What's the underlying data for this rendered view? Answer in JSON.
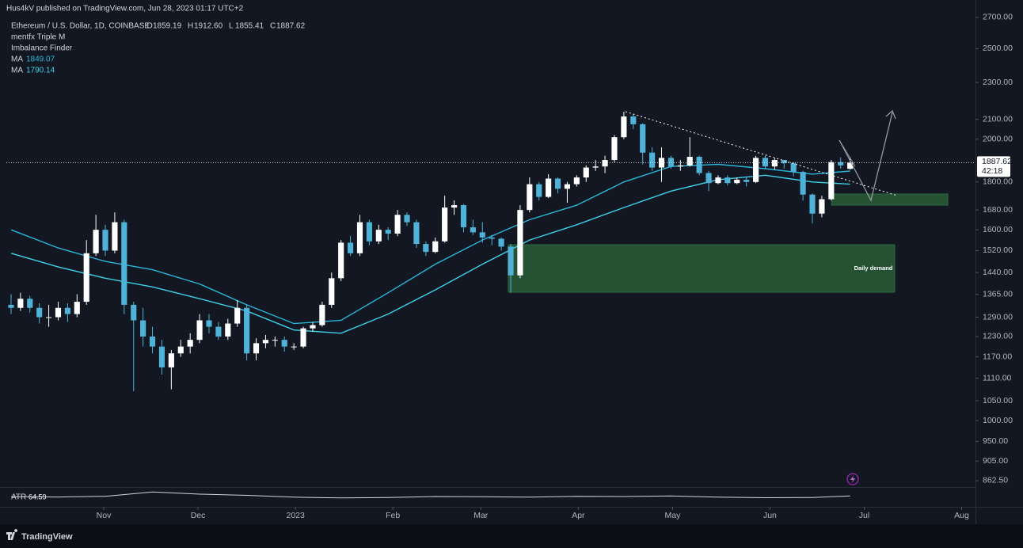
{
  "header": {
    "published": "Hus4kV published on TradingView.com, Jun 28, 2023 01:17 UTC+2",
    "symbol": "Ethereum / U.S. Dollar, 1D, COINBASE",
    "ohlc": {
      "labels": [
        "O",
        "H",
        "L",
        "C"
      ],
      "values": [
        1859.19,
        1912.6,
        1855.41,
        1887.62
      ],
      "value_labels": [
        "1859.19",
        "1912.60",
        "1855.41",
        "1887.62"
      ]
    },
    "indicators": [
      "mentfx Triple M",
      "Imbalance Finder"
    ]
  },
  "chart_data": {
    "type": "candlestick",
    "log_scale": true,
    "up_color": "#ffffff",
    "down_color": "#4fb3d9",
    "open": [
      1330,
      1320,
      1350,
      1320,
      1290,
      1290,
      1320,
      1300,
      1340,
      1510,
      1600,
      1520,
      1630,
      1330,
      1280,
      1230,
      1200,
      1140,
      1180,
      1200,
      1220,
      1280,
      1260,
      1230,
      1270,
      1320,
      1180,
      1210,
      1220,
      1220,
      1200,
      1200,
      1255,
      1265,
      1330,
      1420,
      1550,
      1510,
      1630,
      1555,
      1600,
      1585,
      1660,
      1630,
      1545,
      1515,
      1555,
      1690,
      1700,
      1610,
      1590,
      1570,
      1565,
      1535,
      1430,
      1680,
      1790,
      1735,
      1815,
      1770,
      1790,
      1820,
      1865,
      1870,
      1900,
      2010,
      2115,
      2075,
      1935,
      1865,
      1910,
      1870,
      1875,
      1915,
      1840,
      1795,
      1820,
      1795,
      1810,
      1800,
      1910,
      1870,
      1900,
      1885,
      1845,
      1745,
      1665,
      1725,
      1890,
      1859.19
    ],
    "high": [
      1365,
      1370,
      1360,
      1335,
      1330,
      1340,
      1335,
      1365,
      1560,
      1660,
      1620,
      1670,
      1640,
      1340,
      1320,
      1260,
      1220,
      1190,
      1220,
      1240,
      1300,
      1300,
      1275,
      1285,
      1345,
      1330,
      1225,
      1235,
      1230,
      1230,
      1210,
      1260,
      1275,
      1340,
      1440,
      1560,
      1575,
      1660,
      1640,
      1620,
      1610,
      1680,
      1670,
      1640,
      1555,
      1570,
      1740,
      1720,
      1705,
      1640,
      1630,
      1580,
      1570,
      1545,
      1700,
      1820,
      1800,
      1835,
      1820,
      1800,
      1830,
      1875,
      1900,
      1920,
      2020,
      2140,
      2130,
      2080,
      1960,
      1960,
      1920,
      1900,
      2010,
      1920,
      1850,
      1830,
      1830,
      1820,
      1825,
      1920,
      1920,
      1910,
      1895,
      1890,
      1850,
      1750,
      1740,
      1900,
      1912,
      1912.6
    ],
    "low": [
      1300,
      1310,
      1305,
      1270,
      1260,
      1280,
      1275,
      1290,
      1330,
      1500,
      1500,
      1510,
      1300,
      1075,
      1200,
      1180,
      1120,
      1080,
      1170,
      1180,
      1210,
      1240,
      1220,
      1220,
      1260,
      1160,
      1160,
      1195,
      1200,
      1185,
      1190,
      1195,
      1245,
      1260,
      1320,
      1410,
      1500,
      1500,
      1540,
      1545,
      1560,
      1575,
      1615,
      1530,
      1500,
      1510,
      1550,
      1660,
      1590,
      1580,
      1550,
      1540,
      1520,
      1370,
      1420,
      1670,
      1720,
      1730,
      1750,
      1710,
      1780,
      1800,
      1850,
      1840,
      1890,
      2000,
      2050,
      1880,
      1850,
      1800,
      1860,
      1850,
      1870,
      1830,
      1760,
      1790,
      1785,
      1790,
      1780,
      1795,
      1860,
      1855,
      1860,
      1825,
      1720,
      1625,
      1650,
      1720,
      1860,
      1855.41
    ],
    "close": [
      1320,
      1350,
      1320,
      1290,
      1290,
      1320,
      1300,
      1340,
      1510,
      1600,
      1520,
      1630,
      1330,
      1280,
      1230,
      1200,
      1140,
      1180,
      1200,
      1220,
      1280,
      1260,
      1230,
      1270,
      1320,
      1180,
      1210,
      1220,
      1220,
      1200,
      1200,
      1255,
      1265,
      1330,
      1420,
      1550,
      1510,
      1630,
      1555,
      1600,
      1585,
      1660,
      1630,
      1545,
      1515,
      1555,
      1690,
      1700,
      1610,
      1590,
      1570,
      1565,
      1535,
      1430,
      1680,
      1790,
      1735,
      1815,
      1770,
      1790,
      1820,
      1865,
      1870,
      1900,
      2010,
      2115,
      2075,
      1935,
      1865,
      1910,
      1870,
      1875,
      1915,
      1840,
      1795,
      1820,
      1795,
      1810,
      1800,
      1910,
      1870,
      1900,
      1885,
      1845,
      1745,
      1665,
      1725,
      1890,
      1875,
      1887.62
    ],
    "countdown": "42:18",
    "xlim": [
      0,
      102.8
    ],
    "xticks": [
      {
        "value": 10.33,
        "label": "Nov"
      },
      {
        "value": 20.33,
        "label": "Dec"
      },
      {
        "value": 30.67,
        "label": "2023"
      },
      {
        "value": 41,
        "label": "Feb"
      },
      {
        "value": 50.33,
        "label": "Mar"
      },
      {
        "value": 60.67,
        "label": "Apr"
      },
      {
        "value": 70.67,
        "label": "May"
      },
      {
        "value": 81,
        "label": "Jun"
      },
      {
        "value": 91,
        "label": "Jul"
      },
      {
        "value": 101.33,
        "label": "Aug"
      }
    ],
    "ylim": [
      849,
      2818
    ],
    "yticks": [
      {
        "value": 2700,
        "label": "2700.00"
      },
      {
        "value": 2500,
        "label": "2500.00"
      },
      {
        "value": 2300,
        "label": "2300.00"
      },
      {
        "value": 2100,
        "label": "2100.00"
      },
      {
        "value": 2000,
        "label": "2000.00"
      },
      {
        "value": 1800,
        "label": "1800.00"
      },
      {
        "value": 1680,
        "label": "1680.00"
      },
      {
        "value": 1600,
        "label": "1600.00"
      },
      {
        "value": 1520,
        "label": "1520.00"
      },
      {
        "value": 1440,
        "label": "1440.00"
      },
      {
        "value": 1365,
        "label": "1365.00"
      },
      {
        "value": 1290,
        "label": "1290.00"
      },
      {
        "value": 1230,
        "label": "1230.00"
      },
      {
        "value": 1170,
        "label": "1170.00"
      },
      {
        "value": 1110,
        "label": "1110.00"
      },
      {
        "value": 1050,
        "label": "1050.00"
      },
      {
        "value": 1000,
        "label": "1000.00"
      },
      {
        "value": 950,
        "label": "950.00"
      },
      {
        "value": 905,
        "label": "905.00"
      },
      {
        "value": 862.5,
        "label": "862.50"
      }
    ],
    "ma": [
      {
        "name": "MA",
        "color": "#29b6d8",
        "x": [
          0,
          5,
          10,
          15,
          20,
          25,
          30,
          35,
          40,
          45,
          50,
          55,
          60,
          65,
          70,
          75,
          80,
          85,
          89
        ],
        "values": [
          1600,
          1530,
          1480,
          1450,
          1400,
          1330,
          1270,
          1280,
          1370,
          1470,
          1560,
          1640,
          1700,
          1800,
          1870,
          1880,
          1860,
          1835,
          1849.07
        ]
      },
      {
        "name": "MA",
        "color": "#3fd0e8",
        "x": [
          0,
          5,
          10,
          15,
          20,
          25,
          30,
          35,
          40,
          45,
          50,
          55,
          60,
          65,
          70,
          75,
          80,
          85,
          89
        ],
        "values": [
          1510,
          1460,
          1420,
          1390,
          1350,
          1310,
          1250,
          1240,
          1300,
          1380,
          1470,
          1560,
          1620,
          1690,
          1760,
          1810,
          1830,
          1800,
          1790.14
        ]
      }
    ],
    "annotations": [
      "Daily demand"
    ],
    "atr": {
      "name": "ATR",
      "color": "#d1d4dc",
      "ylim": [
        0,
        120
      ],
      "x": [
        0,
        5,
        10,
        15,
        20,
        25,
        30,
        35,
        40,
        45,
        50,
        55,
        60,
        65,
        70,
        75,
        80,
        85,
        89
      ],
      "values": [
        58,
        56,
        62,
        98,
        80,
        70,
        55,
        48,
        52,
        60,
        58,
        55,
        62,
        60,
        65,
        55,
        50,
        52,
        64.59
      ]
    }
  },
  "footer": {
    "brand": "TradingView"
  }
}
